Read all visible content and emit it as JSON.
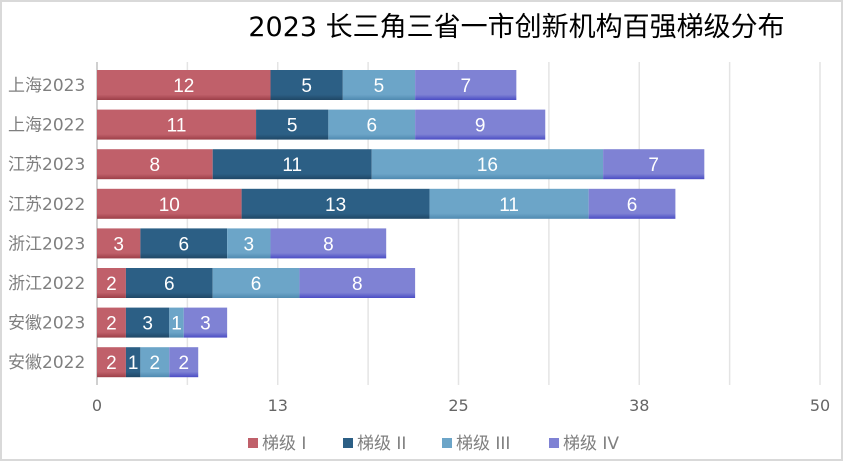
{
  "chart_data": {
    "type": "bar",
    "orientation": "horizontal",
    "stacked": true,
    "title": "2023 长三角三省一市创新机构百强梯级分布",
    "xlabel": "",
    "ylabel": "",
    "categories": [
      "上海2023",
      "上海2022",
      "江苏2023",
      "江苏2022",
      "浙江2023",
      "浙江2022",
      "安徽2023",
      "安徽2022"
    ],
    "series": [
      {
        "name": "梯级 I",
        "color": "#C0606A",
        "values": [
          12,
          11,
          8,
          10,
          3,
          2,
          2,
          2
        ]
      },
      {
        "name": "梯级 II",
        "color": "#2C5F85",
        "values": [
          5,
          5,
          11,
          13,
          6,
          6,
          3,
          1
        ]
      },
      {
        "name": "梯级 III",
        "color": "#6CA5C8",
        "values": [
          5,
          6,
          16,
          11,
          3,
          6,
          1,
          2
        ]
      },
      {
        "name": "梯级 IV",
        "color": "#7F82D4",
        "values": [
          7,
          9,
          7,
          6,
          8,
          8,
          3,
          2
        ]
      }
    ],
    "xlim": [
      0,
      50
    ],
    "x_ticks": [
      0,
      12.5,
      25,
      37.5,
      50
    ],
    "x_tick_labels": [
      "0",
      "13",
      "25",
      "38",
      "50"
    ],
    "minor_grid_step": 6.25,
    "grid": true,
    "legend_position": "bottom"
  }
}
